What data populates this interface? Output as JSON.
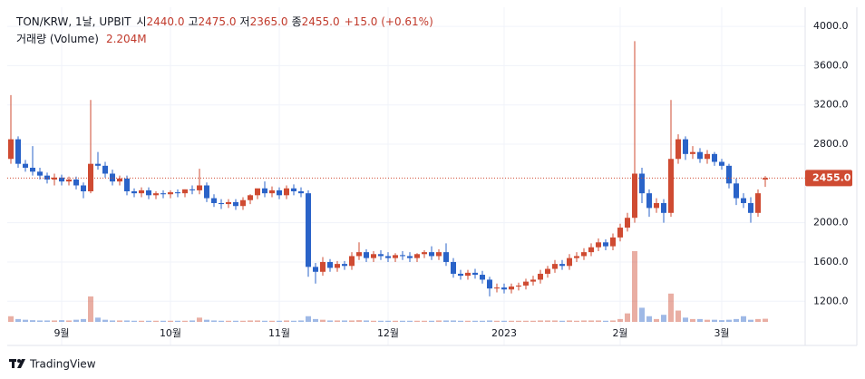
{
  "chart_data": {
    "type": "candlestick",
    "legend": {
      "symbol": "TON/KRW, 1날, UPBIT",
      "open_label": "시",
      "open": "2440.0",
      "high_label": "고",
      "high": "2475.0",
      "low_label": "저",
      "low": "2365.0",
      "close_label": "종",
      "close": "2455.0",
      "change": "+15.0 (+0.61%)",
      "volume_label": "거래량 (Volume)",
      "volume": "2.204M"
    },
    "last_label": "2455.0",
    "brand": "TradingView",
    "up_color": "#cf4b32",
    "down_color": "#2a63c8",
    "ylim": [
      990,
      4130
    ],
    "yticks": [
      {
        "value": 1200,
        "label": "1200.0"
      },
      {
        "value": 1600,
        "label": "1600.0"
      },
      {
        "value": 2000,
        "label": "2000.0"
      },
      {
        "value": 2800,
        "label": "2800.0"
      },
      {
        "value": 3200,
        "label": "3200.0"
      },
      {
        "value": 3600,
        "label": "3600.0"
      },
      {
        "value": 4000,
        "label": "4000.0"
      }
    ],
    "grid": true,
    "categories": [
      null,
      null,
      null,
      null,
      null,
      null,
      null,
      "9월",
      null,
      null,
      null,
      null,
      null,
      null,
      null,
      null,
      null,
      null,
      null,
      null,
      null,
      null,
      "10월",
      null,
      null,
      null,
      null,
      null,
      null,
      null,
      null,
      null,
      null,
      null,
      null,
      null,
      null,
      "11월",
      null,
      null,
      null,
      null,
      null,
      null,
      null,
      null,
      null,
      null,
      null,
      null,
      null,
      null,
      "12월",
      null,
      null,
      null,
      null,
      null,
      null,
      null,
      null,
      null,
      null,
      null,
      null,
      null,
      null,
      null,
      "2023",
      null,
      null,
      null,
      null,
      null,
      null,
      null,
      null,
      null,
      null,
      null,
      null,
      null,
      null,
      null,
      "2월",
      null,
      null,
      null,
      null,
      null,
      null,
      null,
      null,
      null,
      null,
      null,
      null,
      null,
      "3월",
      null,
      null,
      null,
      null,
      null,
      null
    ],
    "open": [
      2650,
      2850,
      2600,
      2560,
      2520,
      2480,
      2440,
      2460,
      2420,
      2440,
      2380,
      2320,
      2600,
      2580,
      2500,
      2420,
      2450,
      2320,
      2300,
      2330,
      2280,
      2300,
      2290,
      2310,
      2300,
      2340,
      2330,
      2380,
      2250,
      2200,
      2190,
      2210,
      2170,
      2230,
      2280,
      2350,
      2300,
      2330,
      2280,
      2350,
      2320,
      2300,
      1550,
      1500,
      1600,
      1540,
      1580,
      1560,
      1660,
      1700,
      1640,
      1680,
      1660,
      1640,
      1670,
      1660,
      1640,
      1680,
      1700,
      1660,
      1700,
      1600,
      1480,
      1460,
      1490,
      1470,
      1420,
      1330,
      1340,
      1320,
      1350,
      1360,
      1400,
      1420,
      1480,
      1530,
      1580,
      1560,
      1640,
      1660,
      1700,
      1750,
      1800,
      1760,
      1850,
      1950,
      2050,
      2500,
      2300,
      2150,
      2200,
      2100,
      2650,
      2850,
      2700,
      2720,
      2650,
      2700,
      2620,
      2580,
      2400,
      2250,
      2200,
      2100,
      2440
    ],
    "high": [
      3300,
      2880,
      2640,
      2780,
      2560,
      2510,
      2500,
      2490,
      2470,
      2470,
      2410,
      3250,
      2720,
      2620,
      2540,
      2480,
      2480,
      2350,
      2360,
      2360,
      2320,
      2330,
      2330,
      2340,
      2340,
      2380,
      2550,
      2410,
      2290,
      2240,
      2240,
      2240,
      2260,
      2290,
      2330,
      2420,
      2370,
      2360,
      2380,
      2390,
      2360,
      2330,
      1590,
      1650,
      1630,
      1610,
      1610,
      1700,
      1800,
      1730,
      1710,
      1720,
      1700,
      1690,
      1710,
      1700,
      1690,
      1720,
      1760,
      1730,
      1790,
      1640,
      1520,
      1520,
      1530,
      1510,
      1450,
      1380,
      1380,
      1380,
      1390,
      1430,
      1460,
      1520,
      1560,
      1620,
      1620,
      1680,
      1700,
      1740,
      1790,
      1840,
      1830,
      1890,
      1990,
      2100,
      3850,
      2560,
      2340,
      2250,
      2240,
      3250,
      2900,
      2880,
      2780,
      2760,
      2740,
      2720,
      2650,
      2600,
      2450,
      2300,
      2260,
      2340,
      2475
    ],
    "low": [
      2600,
      2560,
      2520,
      2480,
      2440,
      2400,
      2380,
      2380,
      2380,
      2340,
      2250,
      2300,
      2540,
      2460,
      2380,
      2380,
      2280,
      2260,
      2260,
      2240,
      2240,
      2250,
      2250,
      2260,
      2260,
      2290,
      2290,
      2210,
      2160,
      2140,
      2150,
      2130,
      2130,
      2190,
      2240,
      2260,
      2260,
      2240,
      2240,
      2280,
      2260,
      1450,
      1380,
      1460,
      1500,
      1500,
      1520,
      1520,
      1620,
      1600,
      1600,
      1620,
      1600,
      1600,
      1620,
      1600,
      1600,
      1640,
      1620,
      1620,
      1560,
      1440,
      1420,
      1420,
      1430,
      1380,
      1250,
      1290,
      1280,
      1280,
      1310,
      1320,
      1360,
      1380,
      1440,
      1490,
      1520,
      1520,
      1600,
      1620,
      1660,
      1710,
      1720,
      1720,
      1810,
      1910,
      2000,
      2200,
      2060,
      2100,
      2000,
      2060,
      2600,
      2640,
      2650,
      2610,
      2600,
      2580,
      2540,
      2350,
      2180,
      2150,
      2000,
      2060,
      2365
    ],
    "close": [
      2850,
      2600,
      2560,
      2520,
      2480,
      2440,
      2460,
      2420,
      2440,
      2380,
      2320,
      2600,
      2580,
      2500,
      2420,
      2450,
      2320,
      2300,
      2330,
      2280,
      2300,
      2290,
      2310,
      2300,
      2340,
      2330,
      2380,
      2250,
      2200,
      2190,
      2210,
      2170,
      2230,
      2280,
      2350,
      2300,
      2330,
      2280,
      2350,
      2320,
      2300,
      1550,
      1500,
      1600,
      1540,
      1580,
      1560,
      1660,
      1700,
      1640,
      1680,
      1660,
      1640,
      1670,
      1660,
      1640,
      1680,
      1700,
      1660,
      1700,
      1600,
      1480,
      1460,
      1490,
      1470,
      1420,
      1330,
      1340,
      1320,
      1350,
      1360,
      1400,
      1420,
      1480,
      1530,
      1580,
      1560,
      1640,
      1660,
      1700,
      1750,
      1800,
      1760,
      1850,
      1950,
      2050,
      2500,
      2300,
      2150,
      2200,
      2100,
      2650,
      2850,
      2700,
      2720,
      2650,
      2700,
      2620,
      2580,
      2400,
      2250,
      2200,
      2100,
      2300,
      2455
    ],
    "volume": [
      4,
      2,
      1.5,
      1.2,
      1,
      1,
      1,
      1.2,
      1,
      1.5,
      2,
      18,
      3,
      1.5,
      1,
      1,
      1,
      0.8,
      0.8,
      0.8,
      0.8,
      0.8,
      0.8,
      0.8,
      0.8,
      1,
      3,
      1.5,
      1,
      0.8,
      0.8,
      0.8,
      0.8,
      1,
      1,
      0.8,
      0.8,
      0.8,
      1,
      0.8,
      1,
      4,
      2,
      1.5,
      1,
      1,
      1,
      1,
      1.2,
      1,
      0.8,
      0.8,
      0.8,
      0.8,
      0.8,
      0.8,
      0.8,
      0.8,
      0.8,
      1,
      1,
      1,
      0.8,
      0.8,
      0.8,
      0.8,
      1,
      0.8,
      0.8,
      0.8,
      0.8,
      0.8,
      0.8,
      1,
      1,
      1,
      0.8,
      1,
      0.8,
      1,
      1,
      1,
      0.8,
      1,
      2,
      6,
      50,
      10,
      4,
      2,
      5,
      20,
      8,
      3,
      2,
      2,
      1.5,
      1.5,
      1.2,
      1.5,
      2,
      4,
      1.5,
      2,
      2.204
    ]
  }
}
